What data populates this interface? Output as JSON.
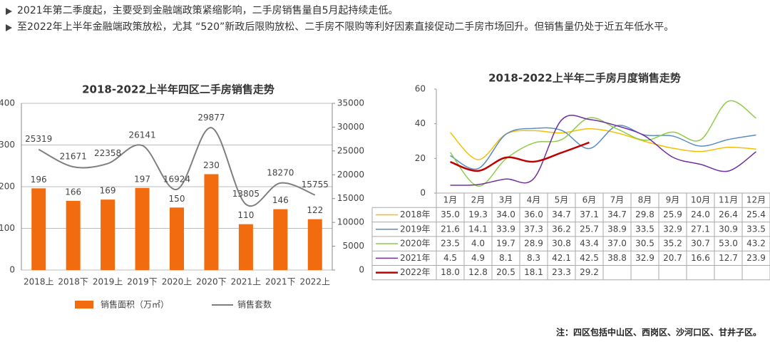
{
  "bullets": [
    "2021年第二季度起，主要受到金融端政策紧缩影响，二手房销售量自5月起持续走低。",
    "至2022年上半年金融端政策放松，尤其 “520”新政后限购放松、二手房不限购等利好因素直接促动二手房市场回升。但销售量仍处于近五年低水平。"
  ],
  "note": "注：四区包括中山区、西岗区、沙河口区、甘井子区。",
  "chart_data": [
    {
      "type": "combo",
      "title": "2018-2022上半年四区二手房销售走势",
      "categories": [
        "2018上",
        "2018下",
        "2019上",
        "2019下",
        "2020上",
        "2020下",
        "2021上",
        "2021下",
        "2022上"
      ],
      "series": [
        {
          "name": "销售面积（万㎡）",
          "type": "bar",
          "color": "#f26b0f",
          "values": [
            196,
            166,
            169,
            197,
            150,
            230,
            110,
            146,
            122
          ]
        },
        {
          "name": "销售套数",
          "type": "line",
          "axis": "y2",
          "color": "#7f7f7f",
          "values": [
            25319,
            21671,
            22358,
            26141,
            16924,
            29877,
            13805,
            18270,
            15755
          ]
        }
      ],
      "ylim": [
        0,
        400
      ],
      "yticks": [
        0,
        100,
        200,
        300,
        400
      ],
      "y2lim": [
        0,
        35000
      ],
      "y2ticks": [
        0,
        5000,
        10000,
        15000,
        20000,
        25000,
        30000,
        35000
      ],
      "grid": true,
      "legend": "bottom"
    },
    {
      "type": "line",
      "title": "2018-2022上半年二手房月度销售走势",
      "categories": [
        "1月",
        "2月",
        "3月",
        "4月",
        "5月",
        "6月",
        "7月",
        "8月",
        "9月",
        "10月",
        "11月",
        "12月"
      ],
      "series": [
        {
          "name": "2018年",
          "color": "#f5c000",
          "values": [
            35.0,
            19.3,
            34.0,
            36.0,
            34.7,
            37.1,
            34.7,
            29.8,
            25.9,
            24.0,
            26.4,
            25.4
          ],
          "value_labels": [
            "35.0",
            "19.3",
            "34.0",
            "36.0",
            "34.7",
            "37.1",
            "34.7",
            "29.8",
            "25.9",
            "24.0",
            "26.4",
            "25.4"
          ]
        },
        {
          "name": "2019年",
          "color": "#5b8cc4",
          "values": [
            21.6,
            14.1,
            33.9,
            37.3,
            36.2,
            25.7,
            38.9,
            33.5,
            32.9,
            27.1,
            30.9,
            33.5
          ],
          "value_labels": [
            "21.6",
            "14.1",
            "33.9",
            "37.3",
            "36.2",
            "25.7",
            "38.9",
            "33.5",
            "32.9",
            "27.1",
            "30.9",
            "33.5"
          ]
        },
        {
          "name": "2020年",
          "color": "#8fcc4a",
          "values": [
            23.5,
            4.0,
            19.7,
            28.9,
            30.8,
            43.4,
            37.0,
            30.5,
            35.2,
            30.7,
            53.0,
            43.2
          ],
          "value_labels": [
            "23.5",
            "4.0",
            "19.7",
            "28.9",
            "30.8",
            "43.4",
            "37.0",
            "30.5",
            "35.2",
            "30.7",
            "53.0",
            "43.2"
          ]
        },
        {
          "name": "2021年",
          "color": "#7030a0",
          "values": [
            4.5,
            4.9,
            8.1,
            8.3,
            42.1,
            42.5,
            38.8,
            32.9,
            20.7,
            16.6,
            12.7,
            23.9
          ],
          "value_labels": [
            "4.5",
            "4.9",
            "8.1",
            "8.3",
            "42.1",
            "42.5",
            "38.8",
            "32.9",
            "20.7",
            "16.6",
            "12.7",
            "23.9"
          ]
        },
        {
          "name": "2022年",
          "color": "#c00000",
          "values": [
            18.0,
            12.8,
            20.5,
            18.1,
            23.3,
            29.2,
            null,
            null,
            null,
            null,
            null,
            null
          ],
          "value_labels": [
            "18.0",
            "12.8",
            "20.5",
            "18.1",
            "23.3",
            "29.2",
            null,
            null,
            null,
            null,
            null,
            null
          ]
        }
      ],
      "ylim": [
        0,
        60
      ],
      "yticks": [
        0,
        20,
        40,
        60
      ],
      "data_table": true
    }
  ]
}
